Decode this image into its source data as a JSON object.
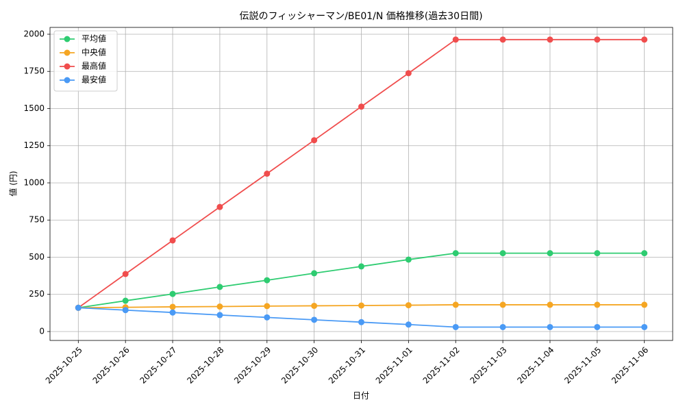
{
  "chart_data": {
    "type": "line",
    "title": "伝説のフィッシャーマン/BE01/N 価格推移(過去30日間)",
    "xlabel": "日付",
    "ylabel": "値 (円)",
    "categories": [
      "2025-10-25",
      "2025-10-26",
      "2025-10-27",
      "2025-10-28",
      "2025-10-29",
      "2025-10-30",
      "2025-10-31",
      "2025-11-01",
      "2025-11-02",
      "2025-11-03",
      "2025-11-04",
      "2025-11-05",
      "2025-11-06"
    ],
    "series": [
      {
        "name": "平均値",
        "color": "#2ecc71",
        "values": [
          160,
          207,
          253,
          300,
          345,
          392,
          438,
          484,
          527,
          527,
          527,
          527,
          527
        ]
      },
      {
        "name": "中央値",
        "color": "#f5a623",
        "values": [
          160,
          163,
          166,
          168,
          171,
          173,
          175,
          177,
          180,
          180,
          180,
          180,
          180
        ]
      },
      {
        "name": "最高値",
        "color": "#f04d4d",
        "values": [
          160,
          387,
          613,
          838,
          1062,
          1287,
          1513,
          1738,
          1964,
          1964,
          1964,
          1964,
          1964
        ]
      },
      {
        "name": "最安値",
        "color": "#4a9af5",
        "values": [
          160,
          144,
          128,
          111,
          95,
          79,
          63,
          47,
          30,
          30,
          30,
          30,
          30
        ]
      }
    ],
    "ylim": [
      -60,
      2046
    ],
    "yticks": [
      0,
      250,
      500,
      750,
      1000,
      1250,
      1500,
      1750,
      2000
    ],
    "grid": true,
    "legend": "upper left"
  }
}
